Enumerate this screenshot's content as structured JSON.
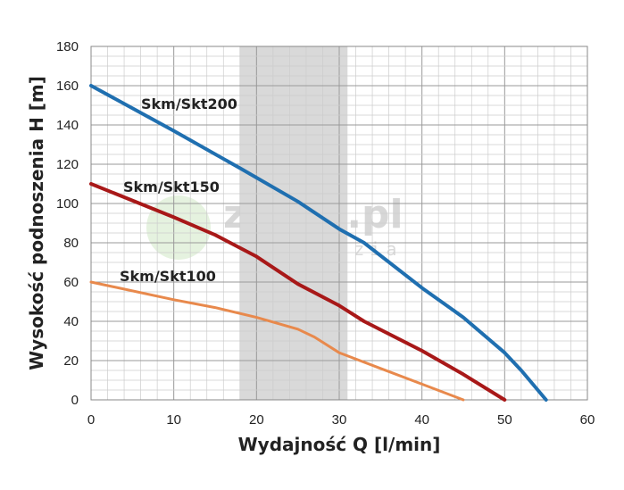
{
  "watermark": {
    "brand": "zerga.pl",
    "tagline": "narzedzia"
  },
  "chart_data": {
    "type": "line",
    "title": "",
    "xlabel": "Wydajność Q [l/min]",
    "ylabel": "Wysokość podnoszenia H [m]",
    "xlim": [
      0,
      60
    ],
    "ylim": [
      0,
      180
    ],
    "xticks": [
      0,
      10,
      20,
      30,
      40,
      50,
      60
    ],
    "yticks": [
      0,
      20,
      40,
      60,
      80,
      100,
      120,
      140,
      160,
      180
    ],
    "xtick_labels": [
      "0",
      "10",
      "20",
      "30",
      "40",
      "50",
      "60"
    ],
    "ytick_labels": [
      "0",
      "20",
      "40",
      "60",
      "80",
      "100",
      "120",
      "140",
      "160",
      "180"
    ],
    "grid": true,
    "highlight_band": {
      "x_from": 18,
      "x_to": 31,
      "color": "#d9d9d9"
    },
    "series": [
      {
        "name": "Skm/Skt200",
        "color": "#1f6fb0",
        "x": [
          0,
          10,
          18,
          25,
          30,
          33,
          40,
          45,
          50,
          52,
          55
        ],
        "y": [
          160,
          137,
          118,
          101,
          87,
          80,
          57,
          42,
          24,
          15,
          0
        ]
      },
      {
        "name": "Skm/Skt150",
        "color": "#a81818",
        "x": [
          0,
          10,
          15,
          20,
          25,
          30,
          33,
          40,
          45,
          50
        ],
        "y": [
          110,
          93,
          84,
          73,
          59,
          48,
          40,
          25,
          13,
          0
        ]
      },
      {
        "name": "Skm/Skt100",
        "color": "#e8894c",
        "x": [
          0,
          10,
          15,
          20,
          25,
          27,
          30,
          35,
          40,
          45
        ],
        "y": [
          60,
          51,
          47,
          42,
          36,
          32,
          24,
          16,
          8,
          0
        ]
      }
    ]
  }
}
